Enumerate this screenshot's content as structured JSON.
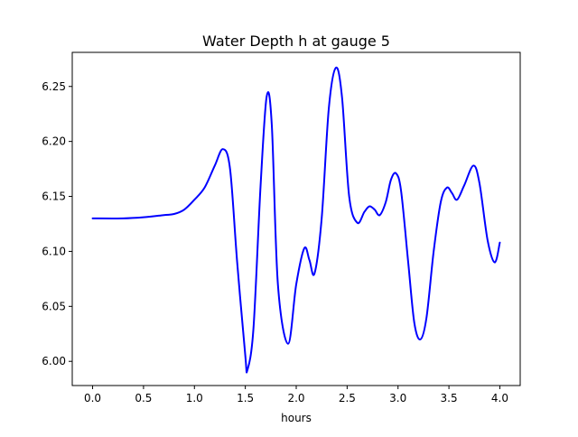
{
  "chart_data": {
    "type": "line",
    "title": "Water Depth h at gauge 5",
    "xlabel": "hours",
    "ylabel": "",
    "xlim": [
      -0.2,
      4.2
    ],
    "ylim": [
      5.978,
      6.281
    ],
    "x_ticks": [
      0.0,
      0.5,
      1.0,
      1.5,
      2.0,
      2.5,
      3.0,
      3.5,
      4.0
    ],
    "x_tick_labels": [
      "0.0",
      "0.5",
      "1.0",
      "1.5",
      "2.0",
      "2.5",
      "3.0",
      "3.5",
      "4.0"
    ],
    "y_ticks": [
      6.0,
      6.05,
      6.1,
      6.15,
      6.2,
      6.25
    ],
    "y_tick_labels": [
      "6.00",
      "6.05",
      "6.10",
      "6.15",
      "6.20",
      "6.25"
    ],
    "grid": false,
    "series": [
      {
        "color": "#0000ff",
        "x": [
          0.0,
          0.3,
          0.5,
          0.7,
          0.8,
          0.9,
          1.0,
          1.1,
          1.2,
          1.28,
          1.35,
          1.42,
          1.5,
          1.52,
          1.58,
          1.65,
          1.71,
          1.76,
          1.82,
          1.92,
          2.0,
          2.08,
          2.13,
          2.18,
          2.25,
          2.32,
          2.39,
          2.45,
          2.52,
          2.6,
          2.67,
          2.72,
          2.77,
          2.82,
          2.88,
          2.93,
          2.98,
          3.03,
          3.1,
          3.16,
          3.22,
          3.28,
          3.35,
          3.42,
          3.48,
          3.53,
          3.58,
          3.65,
          3.74,
          3.8,
          3.88,
          3.95,
          4.0
        ],
        "y": [
          6.13,
          6.13,
          6.131,
          6.133,
          6.134,
          6.138,
          6.147,
          6.158,
          6.178,
          6.193,
          6.175,
          6.09,
          6.005,
          5.992,
          6.03,
          6.16,
          6.241,
          6.215,
          6.07,
          6.016,
          6.07,
          6.103,
          6.092,
          6.08,
          6.13,
          6.23,
          6.267,
          6.24,
          6.15,
          6.126,
          6.136,
          6.141,
          6.138,
          6.133,
          6.145,
          6.165,
          6.171,
          6.155,
          6.09,
          6.035,
          6.02,
          6.04,
          6.1,
          6.145,
          6.158,
          6.153,
          6.147,
          6.16,
          6.178,
          6.162,
          6.11,
          6.09,
          6.108
        ]
      }
    ]
  }
}
